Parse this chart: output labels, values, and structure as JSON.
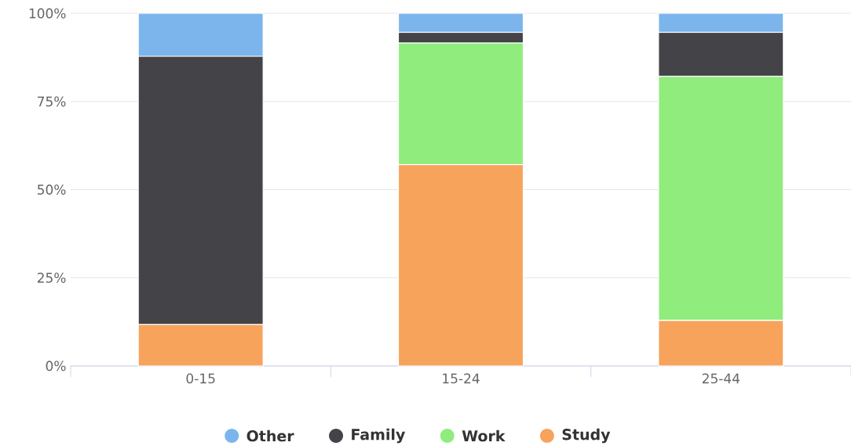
{
  "chart_data": {
    "type": "bar",
    "stacked": true,
    "categories": [
      "0-15",
      "15-24",
      "25-44"
    ],
    "series": [
      {
        "name": "Study",
        "color": "#f7a35c",
        "values": [
          11.7,
          57.1,
          12.9
        ]
      },
      {
        "name": "Work",
        "color": "#90ed7d",
        "values": [
          0,
          34.5,
          69.2
        ]
      },
      {
        "name": "Family",
        "color": "#434348",
        "values": [
          76.1,
          3.0,
          12.5
        ]
      },
      {
        "name": "Other",
        "color": "#7cb5ec",
        "values": [
          12.2,
          5.4,
          5.4
        ]
      }
    ],
    "ylim": [
      0,
      100
    ],
    "yticks": [
      {
        "value": 0,
        "label": "0%"
      },
      {
        "value": 25,
        "label": "25%"
      },
      {
        "value": 50,
        "label": "50%"
      },
      {
        "value": 75,
        "label": "75%"
      },
      {
        "value": 100,
        "label": "100%"
      }
    ],
    "grid": "y",
    "legend": "bottom"
  }
}
